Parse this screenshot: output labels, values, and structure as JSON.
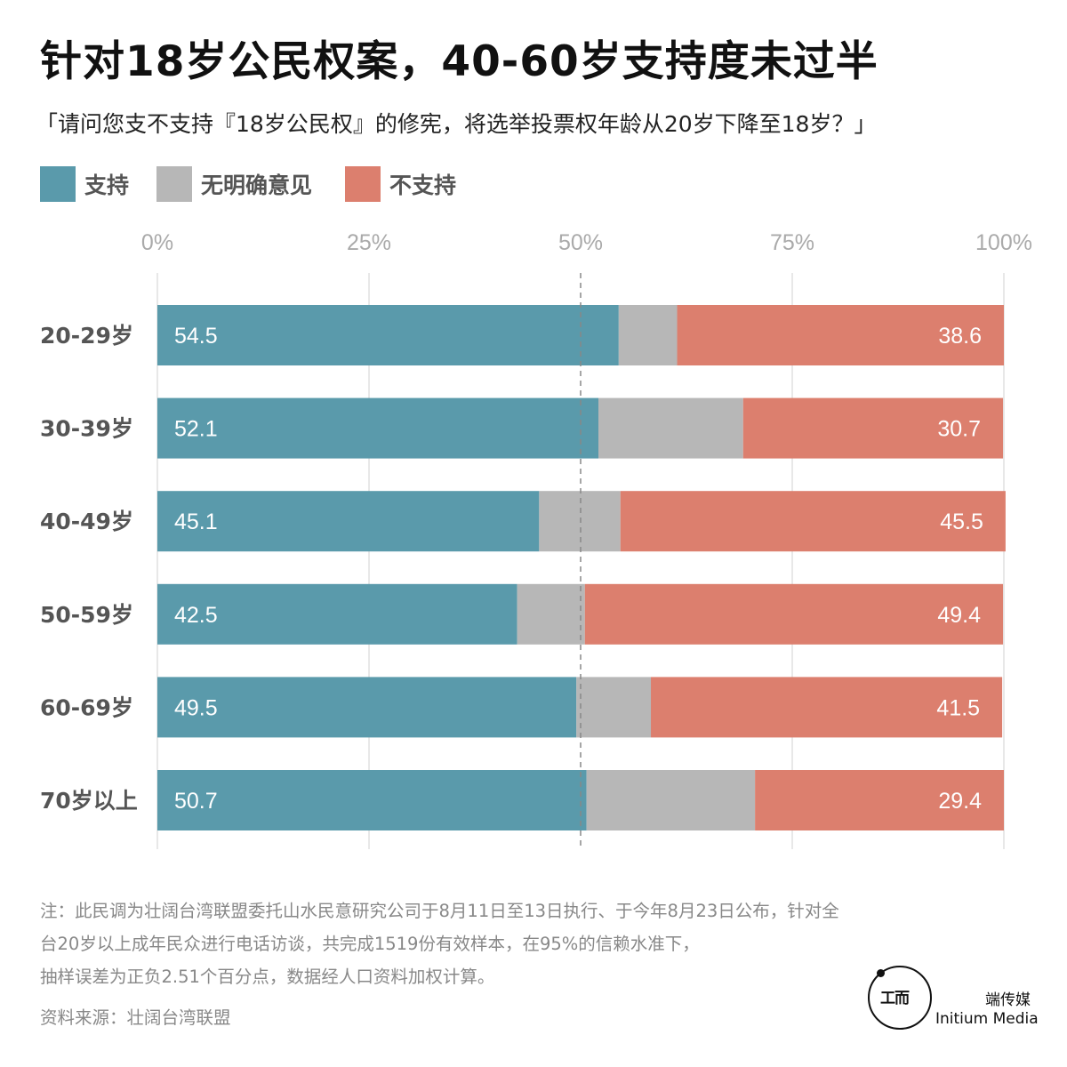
{
  "title": "针对18岁公民权案，40-60岁支持度未过半",
  "subtitle": "「请问您支不支持『18岁公民权』的修宪，将选举投票权年龄从20岁下降至18岁？」",
  "legend": [
    {
      "label": "支持",
      "color": "#5a9aab"
    },
    {
      "label": "无明确意见",
      "color": "#b7b7b7"
    },
    {
      "label": "不支持",
      "color": "#dc7f6e"
    }
  ],
  "chart_data": {
    "type": "bar",
    "orientation": "horizontal",
    "stacked": true,
    "categories": [
      "20-29岁",
      "30-39岁",
      "40-49岁",
      "50-59岁",
      "60-69岁",
      "70岁以上"
    ],
    "series": [
      {
        "name": "支持",
        "color": "#5a9aab",
        "values": [
          54.5,
          52.1,
          45.1,
          42.5,
          49.5,
          50.7
        ]
      },
      {
        "name": "无明确意见",
        "color": "#b7b7b7",
        "values": [
          6.9,
          17.1,
          9.6,
          8.0,
          8.8,
          19.9
        ]
      },
      {
        "name": "不支持",
        "color": "#dc7f6e",
        "values": [
          38.6,
          30.7,
          45.5,
          49.4,
          41.5,
          29.4
        ]
      }
    ],
    "data_labels": {
      "支持": [
        "54.5",
        "52.1",
        "45.1",
        "42.5",
        "49.5",
        "50.7"
      ],
      "不支持": [
        "38.6",
        "30.7",
        "45.5",
        "49.4",
        "41.5",
        "29.4"
      ]
    },
    "xlim": [
      0,
      100
    ],
    "x_ticks": [
      0,
      25,
      50,
      75,
      100
    ],
    "x_tick_labels": [
      "0%",
      "25%",
      "50%",
      "75%",
      "100%"
    ],
    "reference_line": 50,
    "grid": true,
    "legend_position": "top-left"
  },
  "note": [
    "注：此民调为壮阔台湾联盟委托山水民意研究公司于8月11日至13日执行、于今年8月23日公布，针对全",
    "台20岁以上成年民众进行电话访谈，共完成1519份有效样本，在95%的信赖水准下，",
    "抽样误差为正负2.51个百分点，数据经人口资料加权计算。"
  ],
  "source": "资料来源：壮阔台湾联盟",
  "logo": {
    "mark": "工而",
    "name_cn": "端传媒",
    "name_en": "Initium Media"
  }
}
